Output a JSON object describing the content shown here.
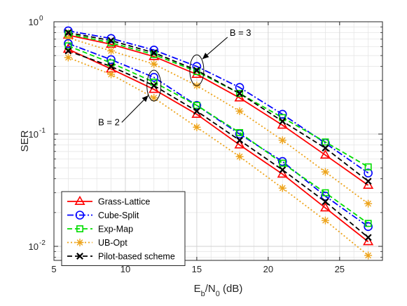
{
  "chart_data": {
    "type": "line",
    "xlabel": "E_b/N_0 (dB)",
    "xlabel_parts": {
      "main1": "E",
      "sub1": "b",
      "slash": "/N",
      "sub2": "0",
      "unit": " (dB)"
    },
    "ylabel": "SER",
    "xlim": [
      5,
      28
    ],
    "ylim": [
      0.0075,
      1
    ],
    "y_scale": "log",
    "grid": true,
    "legend_position": "bottom-left",
    "xticks": [
      5,
      10,
      15,
      20,
      25
    ],
    "yticks": [
      {
        "value": 1,
        "base": "10",
        "exp": "0"
      },
      {
        "value": 0.1,
        "base": "10",
        "exp": "-1"
      },
      {
        "value": 0.01,
        "base": "10",
        "exp": "-2"
      }
    ],
    "x": [
      6,
      9,
      12,
      15,
      18,
      21,
      24,
      27
    ],
    "annotations": [
      {
        "text": "B = 3",
        "at": [
          15,
          0.37
        ],
        "label_at": [
          17.3,
          0.75
        ]
      },
      {
        "text": "B = 2",
        "at": [
          12,
          0.27
        ],
        "label_at": [
          9.6,
          0.12
        ]
      }
    ],
    "series": [
      {
        "name": "Grass-Lattice",
        "group": "B=3",
        "color": "#ff0000",
        "dash": "solid",
        "marker": "triangle",
        "values": [
          0.76,
          0.63,
          0.49,
          0.34,
          0.21,
          0.12,
          0.065,
          0.035
        ]
      },
      {
        "name": "Cube-Split",
        "group": "B=3",
        "color": "#0000ff",
        "dash": "dashdot",
        "marker": "circle",
        "values": [
          0.83,
          0.71,
          0.56,
          0.4,
          0.26,
          0.15,
          0.083,
          0.045
        ]
      },
      {
        "name": "Exp-Map",
        "group": "B=3",
        "color": "#00dd00",
        "dash": "dashed",
        "marker": "square",
        "values": [
          0.78,
          0.65,
          0.51,
          0.36,
          0.23,
          0.14,
          0.085,
          0.051
        ]
      },
      {
        "name": "UB-Opt",
        "group": "B=3",
        "color": "#eda31a",
        "dash": "dotted",
        "marker": "asterisk",
        "values": [
          0.72,
          0.55,
          0.42,
          0.27,
          0.16,
          0.088,
          0.046,
          0.024
        ]
      },
      {
        "name": "Pilot-based scheme",
        "group": "B=3",
        "color": "#000000",
        "dash": "dashed",
        "marker": "x",
        "values": [
          0.8,
          0.68,
          0.53,
          0.37,
          0.23,
          0.13,
          0.075,
          0.038
        ]
      },
      {
        "name": "Grass-Lattice",
        "group": "B=2",
        "color": "#ff0000",
        "dash": "solid",
        "marker": "triangle",
        "values": [
          0.57,
          0.38,
          0.25,
          0.15,
          0.08,
          0.044,
          0.022,
          0.011
        ]
      },
      {
        "name": "Cube-Split",
        "group": "B=2",
        "color": "#0000ff",
        "dash": "dashdot",
        "marker": "circle",
        "values": [
          0.64,
          0.46,
          0.32,
          0.18,
          0.1,
          0.057,
          0.028,
          0.015
        ]
      },
      {
        "name": "Exp-Map",
        "group": "B=2",
        "color": "#00dd00",
        "dash": "dashed",
        "marker": "square",
        "values": [
          0.61,
          0.43,
          0.29,
          0.18,
          0.103,
          0.055,
          0.03,
          0.016
        ]
      },
      {
        "name": "UB-Opt",
        "group": "B=2",
        "color": "#eda31a",
        "dash": "dotted",
        "marker": "asterisk",
        "values": [
          0.48,
          0.34,
          0.21,
          0.115,
          0.063,
          0.033,
          0.017,
          0.0083
        ]
      },
      {
        "name": "Pilot-based scheme",
        "group": "B=2",
        "color": "#000000",
        "dash": "dashed",
        "marker": "x",
        "values": [
          0.55,
          0.4,
          0.27,
          0.16,
          0.088,
          0.048,
          0.025,
          0.012
        ]
      }
    ],
    "legend": [
      {
        "name": "Grass-Lattice",
        "color": "#ff0000",
        "dash": "solid",
        "marker": "triangle"
      },
      {
        "name": "Cube-Split",
        "color": "#0000ff",
        "dash": "dashdot",
        "marker": "circle"
      },
      {
        "name": "Exp-Map",
        "color": "#00dd00",
        "dash": "dashed",
        "marker": "square"
      },
      {
        "name": "UB-Opt",
        "color": "#eda31a",
        "dash": "dotted",
        "marker": "asterisk"
      },
      {
        "name": "Pilot-based scheme",
        "color": "#000000",
        "dash": "dashed",
        "marker": "x"
      }
    ]
  }
}
